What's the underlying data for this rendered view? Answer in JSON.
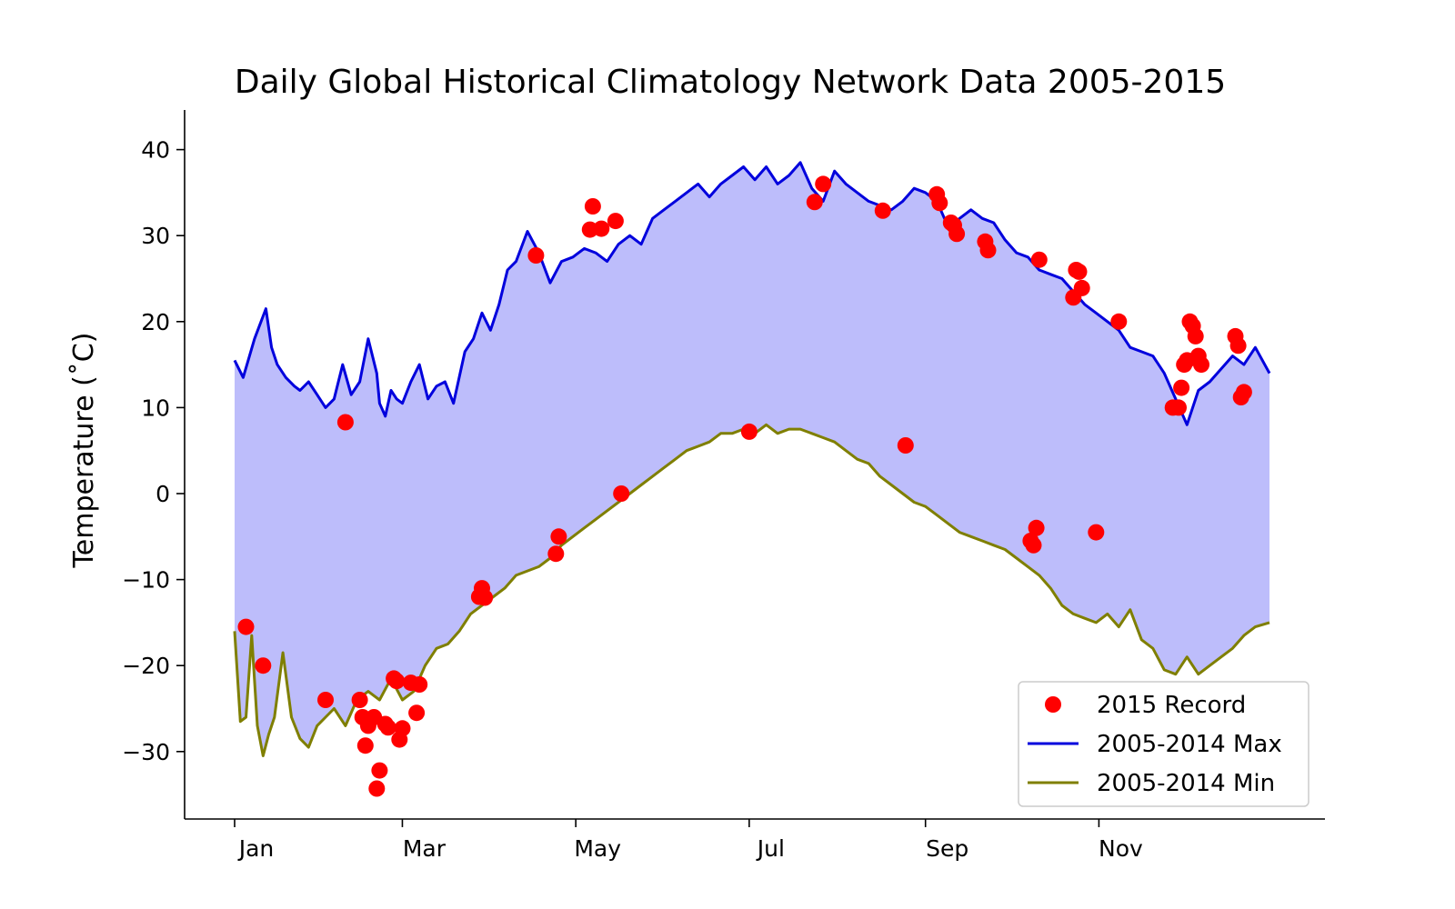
{
  "chart_data": {
    "type": "line",
    "title": "Daily Global Historical Climatology Network Data 2005-2015",
    "xlabel": "",
    "ylabel": "Temperature (˚C)",
    "ylim": [
      -38,
      44
    ],
    "y_ticks": [
      -30,
      -20,
      -10,
      0,
      10,
      20,
      30,
      40
    ],
    "y_tick_labels": [
      "−30",
      "−20",
      "−10",
      "0",
      "10",
      "20",
      "30",
      "40"
    ],
    "x_ticks": [
      {
        "label": "Jan",
        "day": 1
      },
      {
        "label": "Mar",
        "day": 60
      },
      {
        "label": "May",
        "day": 121
      },
      {
        "label": "Jul",
        "day": 182
      },
      {
        "label": "Sep",
        "day": 244
      },
      {
        "label": "Nov",
        "day": 305
      }
    ],
    "grid": false,
    "legend_position": "lower-right",
    "fill_between": {
      "color": "#bdbdfb"
    },
    "series": [
      {
        "name": "2005-2014 Max",
        "color": "#0000dd",
        "x": [
          1,
          4,
          8,
          12,
          14,
          16,
          19,
          22,
          24,
          27,
          30,
          33,
          36,
          39,
          42,
          45,
          48,
          51,
          52,
          54,
          56,
          58,
          60,
          63,
          66,
          69,
          72,
          75,
          78,
          82,
          85,
          88,
          91,
          94,
          97,
          100,
          104,
          108,
          112,
          116,
          120,
          124,
          128,
          132,
          136,
          140,
          144,
          148,
          152,
          156,
          160,
          164,
          168,
          172,
          176,
          180,
          184,
          188,
          192,
          196,
          200,
          204,
          208,
          212,
          216,
          220,
          224,
          228,
          232,
          236,
          240,
          244,
          248,
          252,
          256,
          260,
          264,
          268,
          272,
          276,
          280,
          284,
          288,
          292,
          296,
          300,
          304,
          308,
          312,
          316,
          320,
          324,
          328,
          332,
          336,
          340,
          344,
          348,
          352,
          356,
          360,
          365
        ],
        "y": [
          15.5,
          13.5,
          18,
          21.5,
          17,
          15,
          13.5,
          12.5,
          12,
          13,
          11.5,
          10,
          11,
          15,
          11.5,
          13,
          18,
          14,
          10.5,
          9,
          12,
          11,
          10.5,
          13,
          15,
          11,
          12.5,
          13,
          10.5,
          16.5,
          18,
          21,
          19,
          22,
          26,
          27,
          30.5,
          28,
          24.5,
          27,
          27.5,
          28.5,
          28,
          27,
          29,
          30,
          29,
          32,
          33,
          34,
          35,
          36,
          34.5,
          36,
          37,
          38,
          36.5,
          38,
          36,
          37,
          38.5,
          35.5,
          34,
          37.5,
          36,
          35,
          34,
          33.5,
          33,
          34,
          35.5,
          35,
          34,
          31,
          32,
          33,
          32,
          31.5,
          29.5,
          28,
          27.5,
          26,
          25.5,
          25,
          23.5,
          22,
          21,
          20,
          19,
          17,
          16.5,
          16,
          14,
          11,
          8,
          12,
          13,
          14.5,
          16,
          15,
          17,
          14
        ]
      },
      {
        "name": "2005-2014 Min",
        "color": "#7f7f00",
        "x": [
          1,
          3,
          5,
          7,
          9,
          11,
          13,
          15,
          18,
          21,
          24,
          27,
          30,
          33,
          36,
          40,
          44,
          48,
          52,
          56,
          60,
          64,
          68,
          72,
          76,
          80,
          84,
          88,
          92,
          96,
          100,
          104,
          108,
          112,
          116,
          120,
          124,
          128,
          132,
          136,
          140,
          144,
          148,
          152,
          156,
          160,
          164,
          168,
          172,
          176,
          180,
          184,
          188,
          192,
          196,
          200,
          204,
          208,
          212,
          216,
          220,
          224,
          228,
          232,
          236,
          240,
          244,
          248,
          252,
          256,
          260,
          264,
          268,
          272,
          276,
          280,
          284,
          288,
          292,
          296,
          300,
          304,
          308,
          312,
          316,
          320,
          324,
          328,
          332,
          336,
          340,
          344,
          348,
          352,
          356,
          360,
          365
        ],
        "y": [
          -16,
          -26.5,
          -26,
          -16.5,
          -27,
          -30.5,
          -28,
          -26,
          -18.5,
          -26,
          -28.5,
          -29.5,
          -27,
          -26,
          -25,
          -27,
          -24,
          -23,
          -24,
          -21.5,
          -24,
          -23,
          -20,
          -18,
          -17.5,
          -16,
          -14,
          -13,
          -12,
          -11,
          -9.5,
          -9,
          -8.5,
          -7.5,
          -6,
          -5,
          -4,
          -3,
          -2,
          -1,
          0,
          1,
          2,
          3,
          4,
          5,
          5.5,
          6,
          7,
          7,
          7.5,
          7,
          8,
          7,
          7.5,
          7.5,
          7,
          6.5,
          6,
          5,
          4,
          3.5,
          2,
          1,
          0,
          -1,
          -1.5,
          -2.5,
          -3.5,
          -4.5,
          -5,
          -5.5,
          -6,
          -6.5,
          -7.5,
          -8.5,
          -9.5,
          -11,
          -13,
          -14,
          -14.5,
          -15,
          -14,
          -15.5,
          -13.5,
          -17,
          -18,
          -20.5,
          -21,
          -19,
          -21,
          -20,
          -19,
          -18,
          -16.5,
          -15.5,
          -15
        ]
      }
    ],
    "scatter_series": {
      "name": "2015 Record",
      "color": "#ff0000",
      "points": [
        [
          5,
          -15.5
        ],
        [
          11,
          -20
        ],
        [
          33,
          -24
        ],
        [
          40,
          8.3
        ],
        [
          45,
          -24
        ],
        [
          46,
          -26
        ],
        [
          47,
          -29.3
        ],
        [
          48,
          -27
        ],
        [
          50,
          -26
        ],
        [
          51,
          -34.3
        ],
        [
          52,
          -32.2
        ],
        [
          54,
          -26.8
        ],
        [
          55,
          -27.2
        ],
        [
          57,
          -21.5
        ],
        [
          58,
          -21.8
        ],
        [
          59,
          -28.6
        ],
        [
          60,
          -27.3
        ],
        [
          63,
          -22
        ],
        [
          65,
          -25.5
        ],
        [
          66,
          -22.2
        ],
        [
          87,
          -12
        ],
        [
          88,
          -11
        ],
        [
          89,
          -12.1
        ],
        [
          107,
          27.7
        ],
        [
          114,
          -7
        ],
        [
          115,
          -5
        ],
        [
          126,
          30.7
        ],
        [
          127,
          33.4
        ],
        [
          130,
          30.8
        ],
        [
          135,
          31.7
        ],
        [
          137,
          0
        ],
        [
          182,
          7.2
        ],
        [
          205,
          33.9
        ],
        [
          208,
          36
        ],
        [
          229,
          32.9
        ],
        [
          237,
          5.6
        ],
        [
          248,
          34.8
        ],
        [
          249,
          33.8
        ],
        [
          253,
          31.5
        ],
        [
          254,
          31.2
        ],
        [
          255,
          30.2
        ],
        [
          265,
          29.3
        ],
        [
          266,
          28.3
        ],
        [
          281,
          -5.5
        ],
        [
          282,
          -6
        ],
        [
          283,
          -4
        ],
        [
          284,
          27.2
        ],
        [
          296,
          22.8
        ],
        [
          297,
          26
        ],
        [
          298,
          25.8
        ],
        [
          299,
          23.9
        ],
        [
          304,
          -4.5
        ],
        [
          312,
          20
        ],
        [
          331,
          10
        ],
        [
          333,
          10
        ],
        [
          334,
          12.3
        ],
        [
          335,
          15
        ],
        [
          336,
          15.5
        ],
        [
          337,
          20
        ],
        [
          338,
          19.5
        ],
        [
          339,
          18.3
        ],
        [
          340,
          16
        ],
        [
          341,
          15
        ],
        [
          353,
          18.3
        ],
        [
          354,
          17.2
        ],
        [
          355,
          11.2
        ],
        [
          356,
          11.8
        ]
      ]
    }
  }
}
